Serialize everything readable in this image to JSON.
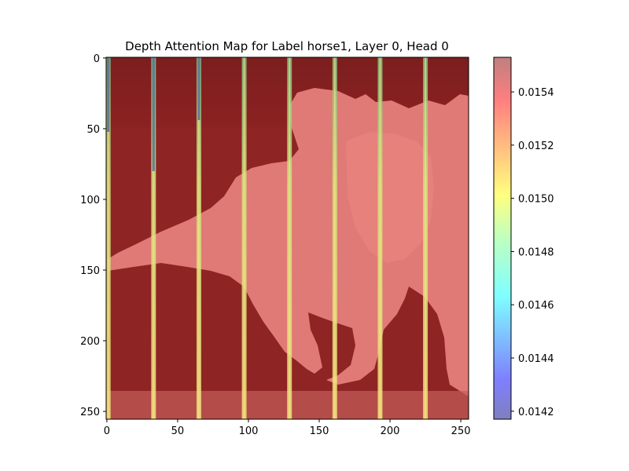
{
  "chart_data": {
    "type": "heatmap",
    "title": "Depth Attention Map for Label horse1, Layer 0, Head 0",
    "xlabel": "",
    "ylabel": "",
    "xlim": [
      0,
      255
    ],
    "ylim": [
      255,
      0
    ],
    "x_ticks": [
      "0",
      "50",
      "100",
      "150",
      "200",
      "250"
    ],
    "y_ticks": [
      "0",
      "50",
      "100",
      "150",
      "200",
      "250"
    ],
    "x_tick_values": [
      0,
      50,
      100,
      150,
      200,
      250
    ],
    "y_tick_values": [
      0,
      50,
      100,
      150,
      200,
      250
    ],
    "colorbar": {
      "colormap": "jet",
      "alpha": 0.5,
      "min": 0.01417,
      "max": 0.01553,
      "ticks": [
        "0.0142",
        "0.0144",
        "0.0146",
        "0.0148",
        "0.0150",
        "0.0152",
        "0.0154"
      ],
      "tick_values": [
        0.0142,
        0.0144,
        0.0146,
        0.0148,
        0.015,
        0.0152,
        0.0154
      ]
    },
    "stripe_columns": [
      1,
      33,
      65,
      97,
      129,
      161,
      193,
      225
    ],
    "grid": false,
    "legend": "none"
  }
}
